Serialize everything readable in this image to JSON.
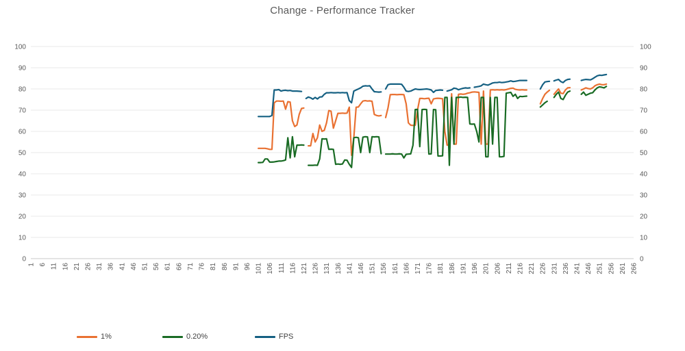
{
  "title": "Change - Performance Tracker",
  "legend": [
    {
      "label": "1%",
      "color": "#E97132"
    },
    {
      "label": "0.20%",
      "color": "#196B24"
    },
    {
      "label": "FPS",
      "color": "#156082"
    }
  ],
  "colors": {
    "axis_text": "#595959",
    "gridline": "#E9E9E9",
    "axis_line": "#C9C9C9",
    "title_text": "#595959"
  },
  "chart_data": {
    "type": "line",
    "title": "Change - Performance Tracker",
    "xlabel": "",
    "ylabel": "",
    "grid": true,
    "legend_position": "bottom",
    "x_axis": {
      "min": 1,
      "max": 266,
      "tick_step": 5,
      "tick_labels": [
        1,
        6,
        11,
        16,
        21,
        26,
        31,
        36,
        41,
        46,
        51,
        56,
        61,
        66,
        71,
        76,
        81,
        86,
        91,
        96,
        101,
        106,
        111,
        116,
        121,
        126,
        131,
        136,
        141,
        146,
        151,
        156,
        161,
        166,
        171,
        176,
        181,
        186,
        191,
        196,
        201,
        206,
        211,
        216,
        221,
        226,
        231,
        236,
        241,
        246,
        251,
        256,
        261,
        266
      ]
    },
    "y_axis": {
      "min": 0,
      "max": 100,
      "tick_step": 10,
      "ticks": [
        0,
        10,
        20,
        30,
        40,
        50,
        60,
        70,
        80,
        90,
        100
      ],
      "sides": [
        "left",
        "right"
      ]
    },
    "series_start_x": 101,
    "series": [
      {
        "name": "1%",
        "color": "#E97132",
        "values": [
          52,
          52,
          52,
          52,
          51.8,
          51.5,
          51.5,
          73.5,
          74.3,
          74.3,
          74.2,
          74.3,
          70.5,
          74,
          73.8,
          65,
          62.3,
          63,
          68,
          70.8,
          71,
          null,
          53.2,
          53.2,
          59,
          55,
          57,
          63,
          60,
          60.5,
          64,
          69.8,
          69.5,
          61.5,
          65,
          68.5,
          68.5,
          68.6,
          68.5,
          68.6,
          71.4,
          48.7,
          57,
          71.4,
          71.5,
          73,
          74.3,
          74.5,
          74.3,
          74.4,
          74.2,
          68,
          67.5,
          67.3,
          67.5,
          null,
          66.5,
          71,
          77.3,
          77.4,
          77.4,
          77.3,
          77.4,
          77.4,
          77.3,
          73,
          64,
          62.9,
          62.8,
          62.9,
          70,
          75.5,
          75.5,
          75.4,
          75.5,
          75.6,
          73,
          75.3,
          75.5,
          75.6,
          75.5,
          75.4,
          60,
          53.5,
          53.6,
          77.7,
          54,
          54,
          77.5,
          77.6,
          77.5,
          77.6,
          78,
          78.2,
          78.5,
          78.6,
          78.5,
          78.4,
          54,
          79,
          54,
          54,
          79.5,
          79.6,
          79.5,
          79.6,
          79.5,
          79.6,
          79.5,
          79.7,
          80,
          80.3,
          80.4,
          79.8,
          79.6,
          79.5,
          79.6,
          79.5,
          79.5,
          null,
          null,
          null,
          null,
          null,
          73,
          75.5,
          77.5,
          78.5,
          79.4,
          null,
          77.5,
          78.8,
          80,
          78,
          77.8,
          79.5,
          80.5,
          80.6,
          null,
          null,
          null,
          null,
          79.5,
          80,
          80.5,
          80.2,
          80,
          80.5,
          81.5,
          82,
          82.3,
          82,
          82,
          82.3
        ]
      },
      {
        "name": "0.20%",
        "color": "#196B24",
        "values": [
          45.3,
          45.3,
          45.4,
          47,
          47,
          45.5,
          45.5,
          45.6,
          45.8,
          46,
          46,
          46.2,
          46.5,
          57,
          47.5,
          57.5,
          48,
          53.5,
          53.5,
          53.6,
          53.5,
          null,
          44,
          44,
          44,
          44.1,
          44,
          47,
          56.5,
          56.4,
          56.5,
          51.5,
          51.6,
          51.5,
          44.5,
          44.6,
          44.5,
          44.6,
          46.5,
          46.4,
          44.5,
          43,
          57,
          57.2,
          57,
          50,
          57.3,
          57.5,
          57.4,
          50,
          57.5,
          57.4,
          57.5,
          57.4,
          49.5,
          null,
          49.3,
          49.3,
          49.3,
          49.4,
          49.3,
          49.3,
          49.4,
          49.3,
          47.5,
          49.2,
          49.3,
          49.4,
          53.5,
          70.3,
          70.4,
          52.8,
          70.3,
          70.4,
          70.3,
          49.3,
          49.4,
          70.3,
          70.2,
          48.4,
          48.4,
          48.5,
          76,
          76,
          44,
          76,
          54,
          76,
          76,
          76.2,
          76,
          76.1,
          76,
          63.5,
          63.4,
          63.5,
          60,
          55,
          76,
          76,
          48,
          48,
          76,
          54,
          76,
          76,
          48,
          48,
          48.2,
          78,
          78.2,
          78.4,
          76.5,
          77.5,
          75.5,
          76.5,
          76.4,
          76.5,
          76.6,
          null,
          null,
          null,
          null,
          null,
          71.5,
          72.5,
          73.5,
          74.2,
          null,
          null,
          76,
          77.5,
          78.5,
          75.5,
          75,
          77,
          78.5,
          79,
          null,
          null,
          null,
          null,
          77.5,
          78.5,
          77,
          77.5,
          78,
          78.2,
          79.5,
          80.5,
          81,
          80.8,
          80.5,
          81.2
        ]
      },
      {
        "name": "FPS",
        "color": "#156082",
        "values": [
          67,
          67,
          67,
          67,
          67,
          67,
          67.5,
          79.5,
          79.5,
          79.7,
          79,
          79.3,
          79.4,
          79.2,
          79.3,
          79,
          79,
          79,
          78.9,
          78.8,
          null,
          75.5,
          76.2,
          75.8,
          75.2,
          76,
          75.3,
          76.2,
          76.3,
          77.5,
          78.2,
          78.2,
          78.3,
          78.2,
          78.2,
          78.3,
          78.2,
          78.3,
          78.2,
          78.3,
          74.5,
          73.5,
          79,
          79.5,
          80,
          80.5,
          81.3,
          81.5,
          81.4,
          81.5,
          80,
          78.7,
          78.6,
          78.5,
          78.6,
          null,
          80,
          82,
          82.3,
          82.3,
          82.3,
          82.3,
          82.3,
          82.2,
          80.8,
          79,
          78.8,
          79,
          79.5,
          80,
          79.8,
          79.7,
          79.8,
          79.9,
          80,
          79.8,
          79.5,
          78.4,
          79.3,
          79.4,
          79.5,
          79.4,
          null,
          79,
          79.3,
          79.6,
          80.4,
          80.2,
          79.6,
          80,
          80.3,
          80.5,
          80.4,
          80.5,
          null,
          80.8,
          81,
          81.2,
          81.5,
          82.3,
          82,
          81.8,
          82.3,
          82.8,
          83,
          83,
          83.2,
          83,
          83.1,
          83.3,
          83.5,
          83.8,
          83.5,
          83.6,
          83.8,
          84,
          84,
          84,
          84,
          null,
          null,
          null,
          null,
          null,
          80,
          82,
          83.3,
          83.5,
          83.6,
          null,
          83.8,
          84.2,
          84.5,
          83.5,
          83,
          84,
          84.5,
          84.6,
          null,
          null,
          null,
          null,
          84,
          84.3,
          84.5,
          84.4,
          84.3,
          84.8,
          85.5,
          86.2,
          86.5,
          86.4,
          86.6,
          86.8
        ]
      }
    ]
  }
}
